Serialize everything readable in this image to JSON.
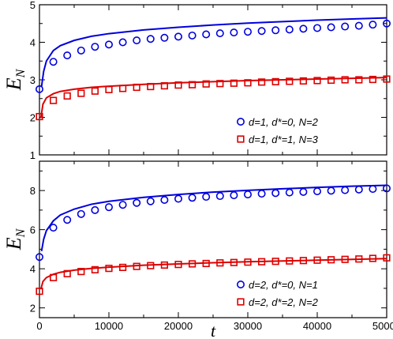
{
  "chart_data": [
    {
      "type": "line",
      "panel": "top",
      "xlabel": "",
      "ylabel": "E_N",
      "xlim": [
        0,
        50000
      ],
      "ylim": [
        1,
        5
      ],
      "x_ticks": [
        0,
        10000,
        20000,
        30000,
        40000,
        50000
      ],
      "x_tick_labels": [
        "",
        "",
        "",
        "",
        "",
        ""
      ],
      "y_ticks": [
        1,
        2,
        3,
        4,
        5
      ],
      "y_tick_labels": [
        "1",
        "2",
        "3",
        "4",
        "5"
      ],
      "legend_position": "bottom-right",
      "series": [
        {
          "name": "d=1, d*=0, N=2",
          "color": "#0000dd",
          "marker": "circle",
          "points": {
            "x": [
              0,
              2000,
              4000,
              6000,
              8000,
              10000,
              12000,
              14000,
              16000,
              18000,
              20000,
              22000,
              24000,
              26000,
              28000,
              30000,
              32000,
              34000,
              36000,
              38000,
              40000,
              42000,
              44000,
              46000,
              48000,
              50000
            ],
            "y": [
              2.75,
              3.48,
              3.65,
              3.78,
              3.88,
              3.94,
              4.0,
              4.05,
              4.09,
              4.12,
              4.15,
              4.18,
              4.21,
              4.24,
              4.26,
              4.28,
              4.3,
              4.32,
              4.34,
              4.36,
              4.38,
              4.4,
              4.42,
              4.44,
              4.47,
              4.5
            ]
          },
          "curve": {
            "x": [
              300,
              600,
              1000,
              2000,
              3000,
              5000,
              7500,
              10000,
              15000,
              20000,
              25000,
              30000,
              35000,
              40000,
              45000,
              50000
            ],
            "y": [
              2.82,
              3.22,
              3.5,
              3.78,
              3.91,
              4.05,
              4.16,
              4.23,
              4.33,
              4.4,
              4.46,
              4.51,
              4.55,
              4.59,
              4.62,
              4.65
            ]
          }
        },
        {
          "name": "d=1, d*=1, N=3",
          "color": "#dd0000",
          "marker": "square",
          "points": {
            "x": [
              0,
              2000,
              4000,
              6000,
              8000,
              10000,
              12000,
              14000,
              16000,
              18000,
              20000,
              22000,
              24000,
              26000,
              28000,
              30000,
              32000,
              34000,
              36000,
              38000,
              40000,
              42000,
              44000,
              46000,
              48000,
              50000
            ],
            "y": [
              2.02,
              2.45,
              2.57,
              2.64,
              2.7,
              2.74,
              2.77,
              2.8,
              2.82,
              2.84,
              2.86,
              2.87,
              2.89,
              2.9,
              2.91,
              2.92,
              2.94,
              2.95,
              2.96,
              2.97,
              2.98,
              2.99,
              3.0,
              3.0,
              3.01,
              3.02
            ]
          },
          "curve": {
            "x": [
              200,
              500,
              1000,
              2000,
              3000,
              5000,
              7500,
              10000,
              15000,
              20000,
              25000,
              30000,
              35000,
              40000,
              45000,
              50000
            ],
            "y": [
              1.98,
              2.35,
              2.52,
              2.63,
              2.69,
              2.75,
              2.8,
              2.83,
              2.88,
              2.92,
              2.95,
              2.98,
              3.0,
              3.02,
              3.04,
              3.06
            ]
          }
        }
      ]
    },
    {
      "type": "line",
      "panel": "bottom",
      "xlabel": "t",
      "ylabel": "E_N",
      "xlim": [
        0,
        50000
      ],
      "ylim": [
        1.5,
        9.5
      ],
      "x_ticks": [
        0,
        10000,
        20000,
        30000,
        40000,
        50000
      ],
      "x_tick_labels": [
        "0",
        "10000",
        "20000",
        "30000",
        "40000",
        "50000"
      ],
      "y_ticks": [
        2,
        4,
        6,
        8
      ],
      "y_tick_labels": [
        "2",
        "4",
        "6",
        "8"
      ],
      "legend_position": "bottom-right",
      "series": [
        {
          "name": "d=2, d*=0, N=1",
          "color": "#0000dd",
          "marker": "circle",
          "points": {
            "x": [
              0,
              2000,
              4000,
              6000,
              8000,
              10000,
              12000,
              14000,
              16000,
              18000,
              20000,
              22000,
              24000,
              26000,
              28000,
              30000,
              32000,
              34000,
              36000,
              38000,
              40000,
              42000,
              44000,
              46000,
              48000,
              50000
            ],
            "y": [
              4.6,
              6.1,
              6.5,
              6.8,
              7.0,
              7.15,
              7.27,
              7.37,
              7.45,
              7.52,
              7.58,
              7.63,
              7.68,
              7.72,
              7.76,
              7.8,
              7.84,
              7.87,
              7.9,
              7.93,
              7.96,
              7.99,
              8.02,
              8.05,
              8.08,
              8.11
            ]
          },
          "curve": {
            "x": [
              300,
              600,
              1000,
              2000,
              3000,
              5000,
              7500,
              10000,
              15000,
              20000,
              25000,
              30000,
              35000,
              40000,
              45000,
              50000
            ],
            "y": [
              4.9,
              5.5,
              5.95,
              6.45,
              6.75,
              7.05,
              7.3,
              7.45,
              7.65,
              7.8,
              7.92,
              8.01,
              8.09,
              8.16,
              8.22,
              8.27
            ]
          }
        },
        {
          "name": "d=2, d*=2, N=2",
          "color": "#dd0000",
          "marker": "square",
          "points": {
            "x": [
              0,
              2000,
              4000,
              6000,
              8000,
              10000,
              12000,
              14000,
              16000,
              18000,
              20000,
              22000,
              24000,
              26000,
              28000,
              30000,
              32000,
              34000,
              36000,
              38000,
              40000,
              42000,
              44000,
              46000,
              48000,
              50000
            ],
            "y": [
              2.85,
              3.55,
              3.75,
              3.86,
              3.95,
              4.02,
              4.07,
              4.12,
              4.16,
              4.19,
              4.22,
              4.25,
              4.27,
              4.3,
              4.32,
              4.34,
              4.36,
              4.38,
              4.4,
              4.42,
              4.44,
              4.46,
              4.48,
              4.5,
              4.53,
              4.56
            ]
          },
          "curve": {
            "x": [
              200,
              500,
              1000,
              2000,
              3000,
              5000,
              7500,
              10000,
              15000,
              20000,
              25000,
              30000,
              35000,
              40000,
              45000,
              50000
            ],
            "y": [
              2.95,
              3.35,
              3.55,
              3.72,
              3.82,
              3.93,
              4.02,
              4.08,
              4.18,
              4.25,
              4.31,
              4.36,
              4.4,
              4.44,
              4.48,
              4.52
            ]
          }
        }
      ]
    }
  ]
}
